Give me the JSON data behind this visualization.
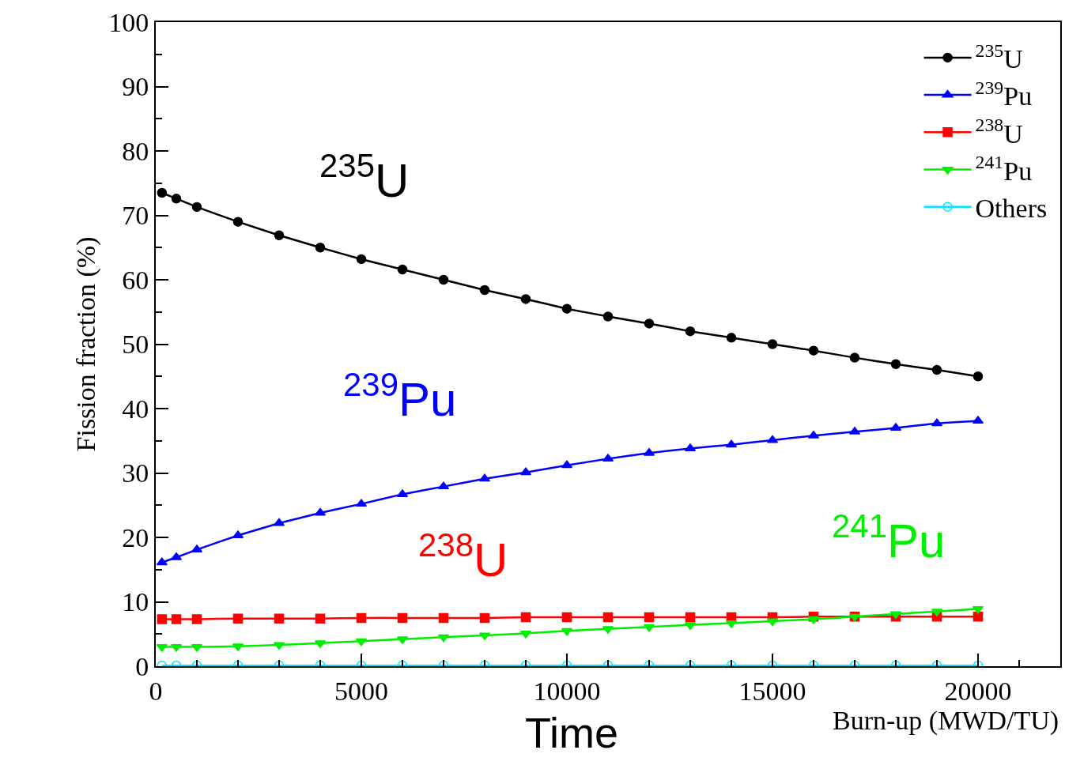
{
  "chart_data": {
    "type": "line",
    "xlabel": "Burn-up (MWD/TU)",
    "ylabel": "Fission fraction (%)",
    "x": [
      150,
      500,
      1000,
      2000,
      3000,
      4000,
      5000,
      6000,
      7000,
      8000,
      9000,
      10000,
      11000,
      12000,
      13000,
      14000,
      15000,
      16000,
      17000,
      18000,
      19000,
      20000
    ],
    "series": [
      {
        "name": "$^{235}$U",
        "color": "#000000",
        "marker": "circle",
        "values": [
          73.5,
          72.6,
          71.3,
          69.0,
          66.9,
          65.0,
          63.2,
          61.6,
          60.0,
          58.4,
          57.0,
          55.5,
          54.3,
          53.2,
          52.0,
          51.0,
          50.0,
          49.0,
          47.9,
          46.9,
          46.0,
          45.0
        ]
      },
      {
        "name": "$^{239}$Pu",
        "color": "#0000ff",
        "marker": "triangle",
        "values": [
          16.1,
          16.9,
          18.1,
          20.3,
          22.2,
          23.8,
          25.2,
          26.7,
          27.9,
          29.1,
          30.1,
          31.2,
          32.2,
          33.1,
          33.8,
          34.4,
          35.1,
          35.8,
          36.4,
          37.0,
          37.7,
          38.1
        ]
      },
      {
        "name": "$^{238}$U",
        "color": "#ff0000",
        "marker": "square",
        "values": [
          7.3,
          7.3,
          7.3,
          7.4,
          7.4,
          7.4,
          7.5,
          7.5,
          7.5,
          7.5,
          7.6,
          7.6,
          7.6,
          7.6,
          7.6,
          7.6,
          7.6,
          7.7,
          7.7,
          7.7,
          7.7,
          7.7
        ]
      },
      {
        "name": "$^{241}$Pu",
        "color": "#00ee00",
        "marker": "triangle-down",
        "values": [
          3.0,
          3.0,
          3.0,
          3.1,
          3.3,
          3.6,
          3.9,
          4.2,
          4.5,
          4.8,
          5.1,
          5.5,
          5.8,
          6.1,
          6.4,
          6.7,
          7.0,
          7.3,
          7.7,
          8.1,
          8.5,
          8.9
        ]
      },
      {
        "name": "Others",
        "color": "#00e5ff",
        "marker": "circle-open",
        "values": [
          0.1,
          0.1,
          0.1,
          0.1,
          0.1,
          0.1,
          0.1,
          0.1,
          0.1,
          0.1,
          0.1,
          0.1,
          0.1,
          0.1,
          0.1,
          0.1,
          0.1,
          0.1,
          0.1,
          0.1,
          0.1,
          0.1
        ]
      }
    ],
    "xlim": [
      0,
      22000
    ],
    "xticks": [
      0,
      5000,
      10000,
      15000,
      20000
    ],
    "ylim": [
      0,
      100
    ],
    "yticks": [
      0,
      10,
      20,
      30,
      40,
      50,
      60,
      70,
      80,
      90,
      100
    ],
    "legend": "top right",
    "line_style": "solid",
    "annotations": [
      "$^{235}$U",
      "$^{239}$Pu",
      "$^{238}$U",
      "$^{241}$Pu",
      "Time"
    ]
  }
}
